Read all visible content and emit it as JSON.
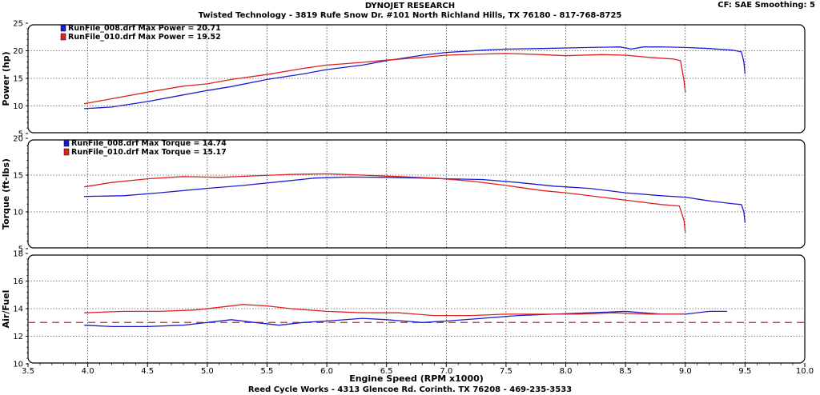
{
  "header": {
    "title": "DYNOJET RESEARCH",
    "subtitle": "Twisted Technology - 3819 Rufe Snow Dr. #101 North Richland Hills, TX 76180 - 817-768-8725",
    "settings": "CF: SAE  Smoothing: 5"
  },
  "footer": {
    "shop": "Reed Cycle Works - 4313 Glencoe Rd. Corinth. TX 76208 - 469-235-3533"
  },
  "colors": {
    "run_008": "#1c1cd0",
    "run_010": "#dd2222",
    "afr_target": "#dd2222",
    "grid": "#000000"
  },
  "chart_data": [
    {
      "type": "line",
      "panel": "power",
      "ylabel": "Power (hp)",
      "ylim": [
        5,
        25
      ],
      "yticks": [
        5,
        10,
        15,
        20,
        25
      ],
      "xlim": [
        3.5,
        10.0
      ],
      "grid": true,
      "legend": "top-left",
      "legend_entries": [
        "RunFile_008.drf Max Power = 20.71",
        "RunFile_010.drf Max Power = 19.52"
      ],
      "series": [
        {
          "name": "RunFile_008.drf",
          "color": "#1c1cd0",
          "x": [
            3.97,
            4.2,
            4.5,
            4.8,
            5.0,
            5.2,
            5.5,
            5.8,
            6.0,
            6.3,
            6.5,
            6.8,
            7.0,
            7.3,
            7.5,
            7.8,
            8.0,
            8.2,
            8.45,
            8.55,
            8.65,
            8.8,
            9.0,
            9.2,
            9.4,
            9.47,
            9.49,
            9.5
          ],
          "values": [
            9.5,
            9.8,
            10.8,
            12.0,
            12.8,
            13.5,
            14.8,
            15.8,
            16.6,
            17.4,
            18.2,
            19.2,
            19.7,
            20.1,
            20.3,
            20.4,
            20.5,
            20.6,
            20.7,
            20.3,
            20.7,
            20.71,
            20.6,
            20.4,
            20.1,
            19.8,
            18.0,
            15.8
          ]
        },
        {
          "name": "RunFile_010.drf",
          "color": "#dd2222",
          "x": [
            3.97,
            4.2,
            4.5,
            4.8,
            5.0,
            5.2,
            5.5,
            5.8,
            6.0,
            6.3,
            6.5,
            6.8,
            7.0,
            7.3,
            7.5,
            7.8,
            8.0,
            8.3,
            8.5,
            8.7,
            8.9,
            8.96,
            8.99,
            9.0
          ],
          "values": [
            10.4,
            11.3,
            12.5,
            13.6,
            14.0,
            14.8,
            15.7,
            16.8,
            17.4,
            17.9,
            18.3,
            18.8,
            19.2,
            19.4,
            19.52,
            19.3,
            19.1,
            19.3,
            19.2,
            18.8,
            18.5,
            18.2,
            14.5,
            12.5
          ]
        }
      ]
    },
    {
      "type": "line",
      "panel": "torque",
      "ylabel": "Torque (ft-lbs)",
      "ylim": [
        5,
        20
      ],
      "yticks": [
        5,
        10,
        15,
        20
      ],
      "xlim": [
        3.5,
        10.0
      ],
      "grid": true,
      "legend": "top-left",
      "legend_entries": [
        "RunFile_008.drf Max Torque = 14.74",
        "RunFile_010.drf Max Torque = 15.17"
      ],
      "series": [
        {
          "name": "RunFile_008.drf",
          "color": "#1c1cd0",
          "x": [
            3.97,
            4.3,
            4.6,
            5.0,
            5.3,
            5.6,
            5.9,
            6.2,
            6.5,
            6.8,
            7.0,
            7.3,
            7.6,
            7.9,
            8.2,
            8.5,
            8.8,
            9.0,
            9.2,
            9.4,
            9.47,
            9.49,
            9.5
          ],
          "values": [
            12.1,
            12.2,
            12.6,
            13.2,
            13.6,
            14.1,
            14.6,
            14.74,
            14.7,
            14.6,
            14.5,
            14.4,
            14.0,
            13.5,
            13.2,
            12.6,
            12.2,
            12.0,
            11.5,
            11.1,
            11.0,
            10.0,
            8.5
          ]
        },
        {
          "name": "RunFile_010.drf",
          "color": "#dd2222",
          "x": [
            3.97,
            4.2,
            4.5,
            4.8,
            5.1,
            5.4,
            5.7,
            6.0,
            6.3,
            6.6,
            6.9,
            7.2,
            7.5,
            7.8,
            8.0,
            8.3,
            8.6,
            8.8,
            8.95,
            8.99,
            9.0
          ],
          "values": [
            13.4,
            14.0,
            14.5,
            14.8,
            14.7,
            14.9,
            15.1,
            15.17,
            15.0,
            14.8,
            14.6,
            14.2,
            13.6,
            12.9,
            12.6,
            12.0,
            11.4,
            11.0,
            10.8,
            8.8,
            7.2
          ]
        }
      ]
    },
    {
      "type": "line",
      "panel": "afr",
      "ylabel": "Air/Fuel",
      "ylim": [
        10,
        18
      ],
      "yticks": [
        10,
        12,
        14,
        16,
        18
      ],
      "xlim": [
        3.5,
        10.0
      ],
      "xlabel": "Engine Speed (RPM x1000)",
      "xticks": [
        3.5,
        4.0,
        4.5,
        5.0,
        5.5,
        6.0,
        6.5,
        7.0,
        7.5,
        8.0,
        8.5,
        9.0,
        9.5,
        10.0
      ],
      "grid": true,
      "target_afr": 13.0,
      "series": [
        {
          "name": "RunFile_008.drf",
          "color": "#1c1cd0",
          "x": [
            3.97,
            4.2,
            4.5,
            4.8,
            5.0,
            5.2,
            5.4,
            5.6,
            5.8,
            6.0,
            6.3,
            6.5,
            6.8,
            7.0,
            7.3,
            7.6,
            7.9,
            8.2,
            8.5,
            8.8,
            9.0,
            9.2,
            9.35
          ],
          "values": [
            12.8,
            12.7,
            12.7,
            12.8,
            13.0,
            13.2,
            13.0,
            12.8,
            13.0,
            13.1,
            13.3,
            13.2,
            13.0,
            13.1,
            13.3,
            13.5,
            13.6,
            13.7,
            13.8,
            13.6,
            13.6,
            13.8,
            13.8
          ]
        },
        {
          "name": "RunFile_010.drf",
          "color": "#dd2222",
          "x": [
            3.97,
            4.3,
            4.6,
            4.9,
            5.1,
            5.3,
            5.5,
            5.7,
            6.0,
            6.3,
            6.6,
            6.9,
            7.2,
            7.5,
            7.8,
            8.1,
            8.4,
            8.7,
            9.0
          ],
          "values": [
            13.7,
            13.8,
            13.8,
            13.9,
            14.1,
            14.3,
            14.2,
            14.0,
            13.8,
            13.7,
            13.7,
            13.5,
            13.5,
            13.6,
            13.6,
            13.6,
            13.7,
            13.6,
            13.6
          ]
        }
      ]
    }
  ]
}
